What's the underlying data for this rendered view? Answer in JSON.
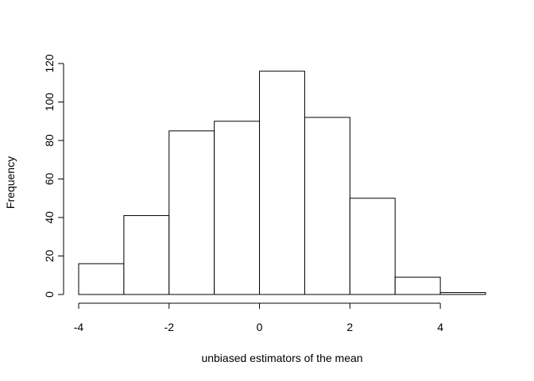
{
  "chart_data": {
    "type": "bar",
    "xlabel": "unbiased estimators of the mean",
    "ylabel": "Frequency",
    "bins": [
      {
        "from": -4,
        "to": -3,
        "count": 16
      },
      {
        "from": -3,
        "to": -2,
        "count": 41
      },
      {
        "from": -2,
        "to": -1,
        "count": 85
      },
      {
        "from": -1,
        "to": 0,
        "count": 90
      },
      {
        "from": 0,
        "to": 1,
        "count": 116
      },
      {
        "from": 1,
        "to": 2,
        "count": 92
      },
      {
        "from": 2,
        "to": 3,
        "count": 50
      },
      {
        "from": 3,
        "to": 4,
        "count": 9
      },
      {
        "from": 4,
        "to": 5,
        "count": 1
      }
    ],
    "x_ticks": [
      -4,
      -2,
      0,
      2,
      4
    ],
    "y_ticks": [
      0,
      20,
      40,
      60,
      80,
      100,
      120
    ],
    "xlim": [
      -4,
      5
    ],
    "ylim": [
      0,
      120
    ],
    "grid": false,
    "colors": {
      "bar_fill": "#ffffff",
      "bar_stroke": "#000000"
    }
  }
}
